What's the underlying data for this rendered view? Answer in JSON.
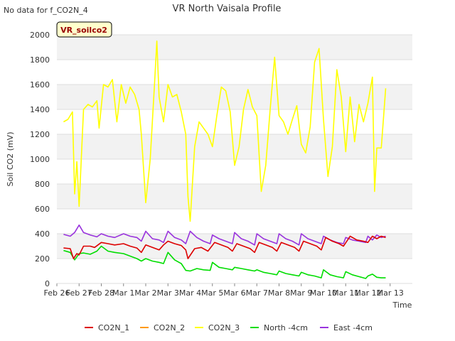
{
  "chart_data": {
    "type": "line",
    "title": "VR North Vaisala Profile",
    "note": "No data for f_CO2N_4",
    "badge": "VR_soilco2",
    "xlabel": "Time",
    "ylabel": "Soil CO2 (mV)",
    "ylim": [
      0,
      2000
    ],
    "yticks": [
      0,
      200,
      400,
      600,
      800,
      1000,
      1200,
      1400,
      1600,
      1800,
      2000
    ],
    "xlim": [
      0,
      16
    ],
    "xtick_labels": [
      "Feb 26",
      "Feb 27",
      "Feb 28",
      "Mar 1",
      "Mar 2",
      "Mar 3",
      "Mar 4",
      "Mar 5",
      "Mar 6",
      "Mar 7",
      "Mar 8",
      "Mar 9",
      "Mar 10",
      "Mar 11",
      "Mar 12",
      "Mar 13"
    ],
    "grid": true,
    "legend_position": "bottom",
    "series": [
      {
        "name": "CO2N_1",
        "color": "#dd0000",
        "points": [
          [
            0.3,
            285
          ],
          [
            0.6,
            280
          ],
          [
            0.75,
            200
          ],
          [
            0.9,
            240
          ],
          [
            1.0,
            230
          ],
          [
            1.2,
            300
          ],
          [
            1.5,
            300
          ],
          [
            1.7,
            290
          ],
          [
            2.0,
            330
          ],
          [
            2.3,
            320
          ],
          [
            2.6,
            310
          ],
          [
            3.0,
            320
          ],
          [
            3.3,
            300
          ],
          [
            3.6,
            285
          ],
          [
            3.8,
            250
          ],
          [
            4.0,
            310
          ],
          [
            4.3,
            290
          ],
          [
            4.6,
            270
          ],
          [
            4.8,
            310
          ],
          [
            5.0,
            340
          ],
          [
            5.3,
            320
          ],
          [
            5.6,
            305
          ],
          [
            5.8,
            270
          ],
          [
            5.9,
            200
          ],
          [
            6.2,
            280
          ],
          [
            6.5,
            290
          ],
          [
            6.8,
            260
          ],
          [
            7.1,
            330
          ],
          [
            7.4,
            310
          ],
          [
            7.7,
            290
          ],
          [
            7.9,
            260
          ],
          [
            8.1,
            320
          ],
          [
            8.4,
            300
          ],
          [
            8.7,
            280
          ],
          [
            8.9,
            250
          ],
          [
            9.1,
            330
          ],
          [
            9.4,
            310
          ],
          [
            9.7,
            290
          ],
          [
            9.9,
            260
          ],
          [
            10.1,
            330
          ],
          [
            10.4,
            310
          ],
          [
            10.7,
            290
          ],
          [
            10.9,
            260
          ],
          [
            11.1,
            340
          ],
          [
            11.4,
            320
          ],
          [
            11.7,
            300
          ],
          [
            11.9,
            270
          ],
          [
            12.1,
            370
          ],
          [
            12.4,
            340
          ],
          [
            12.7,
            320
          ],
          [
            12.9,
            300
          ],
          [
            13.2,
            380
          ],
          [
            13.5,
            350
          ],
          [
            13.8,
            340
          ],
          [
            14.0,
            330
          ],
          [
            14.2,
            380
          ],
          [
            14.4,
            360
          ],
          [
            14.6,
            380
          ],
          [
            14.8,
            370
          ]
        ]
      },
      {
        "name": "CO2N_2",
        "color": "#ff9900",
        "points": []
      },
      {
        "name": "CO2N_3",
        "color": "#ffff00",
        "points": [
          [
            0.3,
            1300
          ],
          [
            0.5,
            1320
          ],
          [
            0.7,
            1380
          ],
          [
            0.8,
            720
          ],
          [
            0.9,
            980
          ],
          [
            1.0,
            620
          ],
          [
            1.2,
            1400
          ],
          [
            1.4,
            1440
          ],
          [
            1.6,
            1420
          ],
          [
            1.8,
            1470
          ],
          [
            1.9,
            1250
          ],
          [
            2.1,
            1600
          ],
          [
            2.3,
            1580
          ],
          [
            2.5,
            1640
          ],
          [
            2.7,
            1300
          ],
          [
            2.9,
            1600
          ],
          [
            3.1,
            1450
          ],
          [
            3.3,
            1580
          ],
          [
            3.5,
            1520
          ],
          [
            3.7,
            1400
          ],
          [
            3.8,
            1200
          ],
          [
            4.0,
            650
          ],
          [
            4.2,
            1000
          ],
          [
            4.4,
            1620
          ],
          [
            4.5,
            1950
          ],
          [
            4.6,
            1500
          ],
          [
            4.8,
            1300
          ],
          [
            5.0,
            1600
          ],
          [
            5.2,
            1500
          ],
          [
            5.4,
            1520
          ],
          [
            5.6,
            1380
          ],
          [
            5.8,
            1200
          ],
          [
            5.9,
            700
          ],
          [
            6.0,
            500
          ],
          [
            6.2,
            1100
          ],
          [
            6.4,
            1300
          ],
          [
            6.6,
            1250
          ],
          [
            6.8,
            1200
          ],
          [
            7.0,
            1100
          ],
          [
            7.2,
            1350
          ],
          [
            7.4,
            1580
          ],
          [
            7.6,
            1550
          ],
          [
            7.8,
            1380
          ],
          [
            8.0,
            950
          ],
          [
            8.2,
            1100
          ],
          [
            8.4,
            1400
          ],
          [
            8.6,
            1560
          ],
          [
            8.8,
            1420
          ],
          [
            9.0,
            1350
          ],
          [
            9.2,
            740
          ],
          [
            9.4,
            950
          ],
          [
            9.6,
            1400
          ],
          [
            9.8,
            1820
          ],
          [
            10.0,
            1350
          ],
          [
            10.2,
            1300
          ],
          [
            10.4,
            1200
          ],
          [
            10.6,
            1320
          ],
          [
            10.8,
            1430
          ],
          [
            11.0,
            1120
          ],
          [
            11.2,
            1050
          ],
          [
            11.4,
            1260
          ],
          [
            11.6,
            1780
          ],
          [
            11.8,
            1890
          ],
          [
            12.0,
            1320
          ],
          [
            12.2,
            860
          ],
          [
            12.4,
            1100
          ],
          [
            12.6,
            1720
          ],
          [
            12.8,
            1500
          ],
          [
            13.0,
            1060
          ],
          [
            13.2,
            1500
          ],
          [
            13.4,
            1140
          ],
          [
            13.6,
            1440
          ],
          [
            13.8,
            1300
          ],
          [
            14.0,
            1450
          ],
          [
            14.2,
            1660
          ],
          [
            14.3,
            740
          ],
          [
            14.4,
            1090
          ],
          [
            14.6,
            1090
          ],
          [
            14.8,
            1570
          ]
        ]
      },
      {
        "name": "North -4cm",
        "color": "#00dd00",
        "points": [
          [
            0.3,
            265
          ],
          [
            0.6,
            250
          ],
          [
            0.8,
            190
          ],
          [
            1.0,
            240
          ],
          [
            1.2,
            245
          ],
          [
            1.5,
            235
          ],
          [
            1.8,
            260
          ],
          [
            2.0,
            300
          ],
          [
            2.3,
            260
          ],
          [
            2.6,
            250
          ],
          [
            3.0,
            240
          ],
          [
            3.3,
            220
          ],
          [
            3.6,
            200
          ],
          [
            3.8,
            180
          ],
          [
            4.0,
            200
          ],
          [
            4.3,
            180
          ],
          [
            4.6,
            170
          ],
          [
            4.8,
            160
          ],
          [
            5.0,
            250
          ],
          [
            5.3,
            190
          ],
          [
            5.6,
            160
          ],
          [
            5.8,
            105
          ],
          [
            6.0,
            100
          ],
          [
            6.3,
            120
          ],
          [
            6.6,
            110
          ],
          [
            6.9,
            105
          ],
          [
            7.0,
            170
          ],
          [
            7.3,
            130
          ],
          [
            7.6,
            120
          ],
          [
            7.9,
            110
          ],
          [
            8.0,
            130
          ],
          [
            8.3,
            120
          ],
          [
            8.6,
            110
          ],
          [
            8.9,
            100
          ],
          [
            9.0,
            110
          ],
          [
            9.3,
            90
          ],
          [
            9.6,
            80
          ],
          [
            9.9,
            70
          ],
          [
            10.0,
            100
          ],
          [
            10.3,
            80
          ],
          [
            10.6,
            70
          ],
          [
            10.9,
            60
          ],
          [
            11.0,
            90
          ],
          [
            11.3,
            70
          ],
          [
            11.6,
            60
          ],
          [
            11.9,
            45
          ],
          [
            12.0,
            110
          ],
          [
            12.3,
            70
          ],
          [
            12.6,
            55
          ],
          [
            12.9,
            45
          ],
          [
            13.0,
            95
          ],
          [
            13.3,
            70
          ],
          [
            13.6,
            55
          ],
          [
            13.9,
            40
          ],
          [
            14.0,
            60
          ],
          [
            14.2,
            75
          ],
          [
            14.4,
            50
          ],
          [
            14.6,
            45
          ],
          [
            14.8,
            45
          ]
        ]
      },
      {
        "name": "East -4cm",
        "color": "#9933dd",
        "points": [
          [
            0.3,
            395
          ],
          [
            0.6,
            380
          ],
          [
            0.8,
            410
          ],
          [
            1.0,
            470
          ],
          [
            1.2,
            410
          ],
          [
            1.5,
            390
          ],
          [
            1.8,
            375
          ],
          [
            2.0,
            400
          ],
          [
            2.3,
            380
          ],
          [
            2.6,
            370
          ],
          [
            3.0,
            400
          ],
          [
            3.3,
            380
          ],
          [
            3.6,
            370
          ],
          [
            3.8,
            340
          ],
          [
            4.0,
            420
          ],
          [
            4.3,
            360
          ],
          [
            4.6,
            350
          ],
          [
            4.8,
            330
          ],
          [
            5.0,
            420
          ],
          [
            5.3,
            370
          ],
          [
            5.6,
            350
          ],
          [
            5.8,
            320
          ],
          [
            6.0,
            420
          ],
          [
            6.3,
            370
          ],
          [
            6.6,
            340
          ],
          [
            6.9,
            320
          ],
          [
            7.0,
            390
          ],
          [
            7.3,
            360
          ],
          [
            7.6,
            340
          ],
          [
            7.9,
            320
          ],
          [
            8.0,
            410
          ],
          [
            8.3,
            360
          ],
          [
            8.6,
            340
          ],
          [
            8.9,
            310
          ],
          [
            9.0,
            400
          ],
          [
            9.3,
            360
          ],
          [
            9.6,
            340
          ],
          [
            9.9,
            320
          ],
          [
            10.0,
            400
          ],
          [
            10.3,
            360
          ],
          [
            10.6,
            340
          ],
          [
            10.9,
            310
          ],
          [
            11.0,
            400
          ],
          [
            11.3,
            360
          ],
          [
            11.6,
            340
          ],
          [
            11.9,
            320
          ],
          [
            12.0,
            380
          ],
          [
            12.3,
            350
          ],
          [
            12.6,
            330
          ],
          [
            12.9,
            320
          ],
          [
            13.0,
            370
          ],
          [
            13.3,
            350
          ],
          [
            13.6,
            340
          ],
          [
            13.9,
            330
          ],
          [
            14.0,
            380
          ],
          [
            14.2,
            350
          ],
          [
            14.4,
            390
          ],
          [
            14.6,
            370
          ],
          [
            14.8,
            380
          ]
        ]
      }
    ]
  }
}
